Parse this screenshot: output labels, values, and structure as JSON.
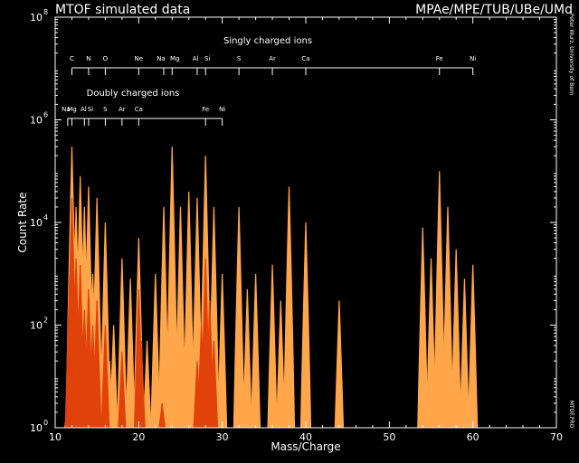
{
  "header": {
    "title": "MTOF simulated data",
    "credit": "MPAe/MPE/TUB/UBe/UMd"
  },
  "side": {
    "vertical_credit": "Peter Wurz, University of Bern",
    "code": "MTOF.PRO"
  },
  "colors": {
    "background": "#000000",
    "axes": "#ffffff",
    "light_ions": "#ffa54a",
    "dark_ions": "#e0420a"
  },
  "chart_data": {
    "type": "area",
    "title": "MTOF simulated data",
    "xlabel": "Mass/Charge",
    "ylabel": "Count Rate",
    "xlim": [
      10,
      70
    ],
    "ylim": [
      1,
      100000000
    ],
    "yscale": "log",
    "xticks": [
      "10",
      "20",
      "30",
      "40",
      "50",
      "60",
      "70"
    ],
    "yticks": [
      {
        "base": "10",
        "exp": "0"
      },
      {
        "base": "10",
        "exp": "2"
      },
      {
        "base": "10",
        "exp": "4"
      },
      {
        "base": "10",
        "exp": "6"
      },
      {
        "base": "10",
        "exp": "8"
      }
    ],
    "annotations": {
      "singly_title": "Singly charged ions",
      "doubly_title": "Doubly charged ions",
      "singly": [
        {
          "label": "C",
          "mass": 12
        },
        {
          "label": "N",
          "mass": 14
        },
        {
          "label": "O",
          "mass": 16
        },
        {
          "label": "Ne",
          "mass": 20
        },
        {
          "label": "Na",
          "mass": 23
        },
        {
          "label": "Mg",
          "mass": 24
        },
        {
          "label": "Al",
          "mass": 27
        },
        {
          "label": "Si",
          "mass": 28
        },
        {
          "label": "S",
          "mass": 32
        },
        {
          "label": "Ar",
          "mass": 36
        },
        {
          "label": "Ca",
          "mass": 40
        },
        {
          "label": "Fe",
          "mass": 56
        },
        {
          "label": "Ni",
          "mass": 60
        }
      ],
      "doubly": [
        {
          "label": "Na",
          "mass": 11.5
        },
        {
          "label": "Mg",
          "mass": 12
        },
        {
          "label": "Al",
          "mass": 13.5
        },
        {
          "label": "Si",
          "mass": 14
        },
        {
          "label": "S",
          "mass": 16
        },
        {
          "label": "Ar",
          "mass": 18
        },
        {
          "label": "Ca",
          "mass": 20
        },
        {
          "label": "Fe",
          "mass": 28
        },
        {
          "label": "Ni",
          "mass": 30
        }
      ]
    },
    "series": [
      {
        "color": "#ffa54a",
        "peaks": [
          {
            "x": 11.5,
            "y": 3
          },
          {
            "x": 12.0,
            "y": 300000
          },
          {
            "x": 12.5,
            "y": 20000
          },
          {
            "x": 13.0,
            "y": 80000
          },
          {
            "x": 13.5,
            "y": 20000
          },
          {
            "x": 14.0,
            "y": 50000
          },
          {
            "x": 14.5,
            "y": 1000
          },
          {
            "x": 15.0,
            "y": 30000
          },
          {
            "x": 16.0,
            "y": 10000
          },
          {
            "x": 16.5,
            "y": 20
          },
          {
            "x": 17.0,
            "y": 100
          },
          {
            "x": 18.0,
            "y": 2000
          },
          {
            "x": 19.0,
            "y": 800
          },
          {
            "x": 20.0,
            "y": 5000
          },
          {
            "x": 21.0,
            "y": 50
          },
          {
            "x": 22.0,
            "y": 1000
          },
          {
            "x": 23.0,
            "y": 20000
          },
          {
            "x": 24.0,
            "y": 300000
          },
          {
            "x": 25.0,
            "y": 20000
          },
          {
            "x": 26.0,
            "y": 40000
          },
          {
            "x": 27.0,
            "y": 30000
          },
          {
            "x": 28.0,
            "y": 200000
          },
          {
            "x": 29.0,
            "y": 20000
          },
          {
            "x": 30.0,
            "y": 1000
          },
          {
            "x": 32.0,
            "y": 20000
          },
          {
            "x": 33.0,
            "y": 500
          },
          {
            "x": 34.0,
            "y": 1000
          },
          {
            "x": 36.0,
            "y": 1500
          },
          {
            "x": 37.0,
            "y": 300
          },
          {
            "x": 38.0,
            "y": 50000
          },
          {
            "x": 40.0,
            "y": 10000
          },
          {
            "x": 44.0,
            "y": 300
          },
          {
            "x": 54.0,
            "y": 8000
          },
          {
            "x": 55.0,
            "y": 2000
          },
          {
            "x": 56.0,
            "y": 100000
          },
          {
            "x": 57.0,
            "y": 20000
          },
          {
            "x": 58.0,
            "y": 3000
          },
          {
            "x": 59.0,
            "y": 800
          },
          {
            "x": 60.0,
            "y": 1500
          }
        ]
      },
      {
        "color": "#e0420a",
        "peaks": [
          {
            "x": 11.75,
            "y": 1000
          },
          {
            "x": 12.0,
            "y": 30000
          },
          {
            "x": 12.5,
            "y": 2000
          },
          {
            "x": 13.0,
            "y": 1500
          },
          {
            "x": 13.5,
            "y": 200
          },
          {
            "x": 14.0,
            "y": 500
          },
          {
            "x": 14.5,
            "y": 100
          },
          {
            "x": 15.0,
            "y": 300
          },
          {
            "x": 16.0,
            "y": 100
          },
          {
            "x": 18.0,
            "y": 30
          },
          {
            "x": 19.9,
            "y": 8
          },
          {
            "x": 20.0,
            "y": 500
          },
          {
            "x": 20.3,
            "y": 50
          },
          {
            "x": 22.8,
            "y": 3
          },
          {
            "x": 27.0,
            "y": 20
          },
          {
            "x": 27.5,
            "y": 100
          },
          {
            "x": 28.0,
            "y": 2000
          },
          {
            "x": 28.5,
            "y": 300
          },
          {
            "x": 29.0,
            "y": 50
          }
        ]
      }
    ]
  }
}
